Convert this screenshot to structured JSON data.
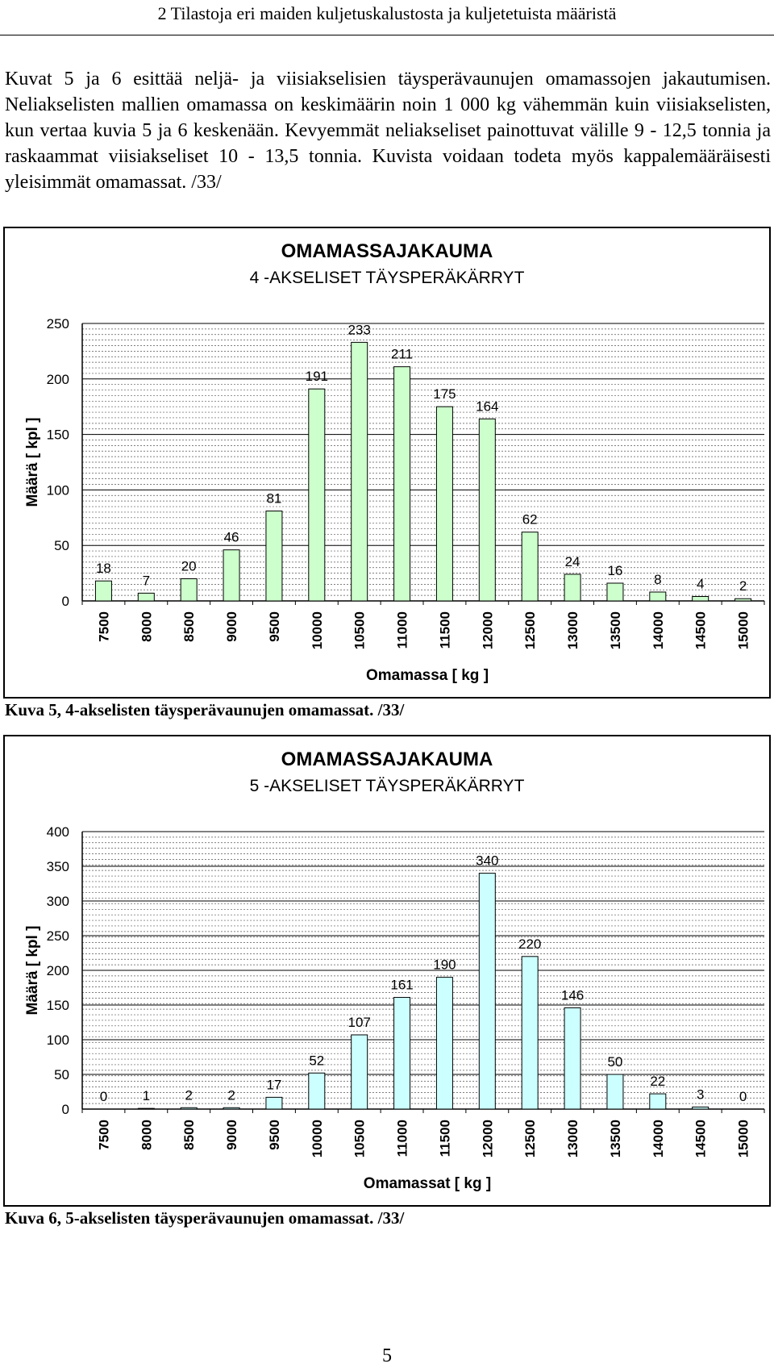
{
  "header": {
    "title": "2 Tilastoja eri maiden kuljetuskalustosta ja kuljetetuista määristä"
  },
  "body_text": "Kuvat 5 ja 6 esittää neljä- ja viisiakselisien täysperävaunujen omamassojen jakautumisen. Neliakselisten mallien omamassa on keskimäärin noin 1 000 kg vähemmän kuin viisiakselisten, kun vertaa kuvia 5 ja 6 keskenään. Kevyemmät neliakseliset painottuvat välille 9 - 12,5 tonnia ja raskaammat viisiakseliset 10 - 13,5 tonnia. Kuvista voidaan todeta myös kappalemääräisesti yleisimmät omamassat. /33/",
  "captions": {
    "figure5": "Kuva 5, 4-akselisten täysperävaunujen omamassat. /33/",
    "figure6": "Kuva 6, 5-akselisten täysperävaunujen omamassat. /33/"
  },
  "page_number": "5",
  "chart_data": [
    {
      "type": "bar",
      "title": "OMAMASSAJAKAUMA",
      "subtitle": "4 -AKSELISET TÄYSPERÄKÄRRYT",
      "xlabel": "Omamassa [ kg ]",
      "ylabel": "Määrä [ kpl ]",
      "ylim": [
        0,
        250
      ],
      "yticks": [
        0,
        50,
        100,
        150,
        200,
        250
      ],
      "grid": true,
      "bar_color": "#ccffcc",
      "categories": [
        "7500",
        "8000",
        "8500",
        "9000",
        "9500",
        "10000",
        "10500",
        "11000",
        "11500",
        "12000",
        "12500",
        "13000",
        "13500",
        "14000",
        "14500",
        "15000"
      ],
      "values": [
        18,
        7,
        20,
        46,
        81,
        191,
        233,
        211,
        175,
        164,
        62,
        24,
        16,
        8,
        4,
        2
      ]
    },
    {
      "type": "bar",
      "title": "OMAMASSAJAKAUMA",
      "subtitle": "5 -AKSELISET TÄYSPERÄKÄRRYT",
      "xlabel": "Omamassat [ kg ]",
      "ylabel": "Määrä [ kpl ]",
      "ylim": [
        0,
        400
      ],
      "yticks": [
        0,
        50,
        100,
        150,
        200,
        250,
        300,
        350,
        400
      ],
      "grid": true,
      "bar_color": "#ccffff",
      "categories": [
        "7500",
        "8000",
        "8500",
        "9000",
        "9500",
        "10000",
        "10500",
        "11000",
        "11500",
        "12000",
        "12500",
        "13000",
        "13500",
        "14000",
        "14500",
        "15000"
      ],
      "values": [
        0,
        1,
        2,
        2,
        17,
        52,
        107,
        161,
        190,
        340,
        220,
        146,
        50,
        22,
        3,
        0
      ]
    }
  ]
}
